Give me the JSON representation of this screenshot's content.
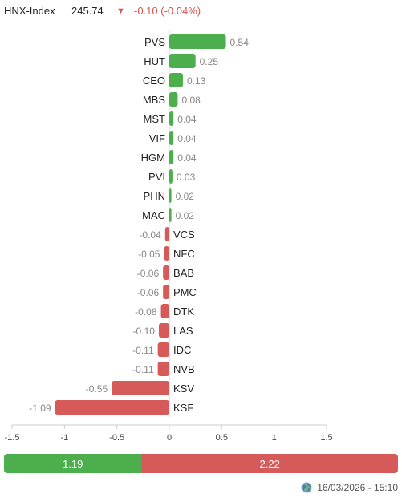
{
  "header": {
    "index_name": "HNX-Index",
    "index_value": "245.74",
    "arrow": "▼",
    "change": "-0.10 (-0.04%)",
    "change_color": "#d9534f"
  },
  "chart_data": {
    "type": "bar",
    "orientation": "horizontal",
    "categories": [
      "PVS",
      "HUT",
      "CEO",
      "MBS",
      "MST",
      "VIF",
      "HGM",
      "PVI",
      "PHN",
      "MAC",
      "VCS",
      "NFC",
      "BAB",
      "PMC",
      "DTK",
      "LAS",
      "IDC",
      "NVB",
      "KSV",
      "KSF"
    ],
    "values": [
      0.54,
      0.25,
      0.13,
      0.08,
      0.04,
      0.04,
      0.04,
      0.03,
      0.02,
      0.02,
      -0.04,
      -0.05,
      -0.06,
      -0.06,
      -0.08,
      -0.1,
      -0.11,
      -0.11,
      -0.55,
      -1.09
    ],
    "value_labels": [
      "0.54",
      "0.25",
      "0.13",
      "0.08",
      "0.04",
      "0.04",
      "0.04",
      "0.03",
      "0.02",
      "0.02",
      "-0.04",
      "-0.05",
      "-0.06",
      "-0.06",
      "-0.08",
      "-0.10",
      "-0.11",
      "-0.11",
      "-0.55",
      "-1.09"
    ],
    "xlim": [
      -1.5,
      1.5
    ],
    "xticks": [
      -1.5,
      -1,
      -0.5,
      0,
      0.5,
      1,
      1.5
    ],
    "xtick_labels": [
      "-1.5",
      "-1",
      "-0.5",
      "0",
      "0.5",
      "1",
      "1.5"
    ],
    "colors": {
      "positive": "#4cae4c",
      "negative": "#d75a5a"
    },
    "legend": false,
    "grid": false
  },
  "summary_bar": {
    "up_label": "1.19",
    "down_label": "2.22",
    "up_value": 1.19,
    "down_value": 2.22
  },
  "footer": {
    "icon": "globe-icon",
    "timestamp": "16/03/2026 - 15:10"
  }
}
